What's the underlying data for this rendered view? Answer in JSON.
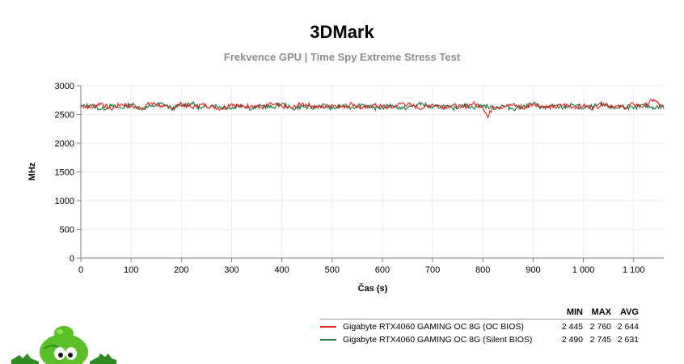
{
  "title": "3DMark",
  "subtitle": "Frekvence GPU | Time Spy Extreme Stress Test",
  "legend_headers": [
    "MIN",
    "MAX",
    "AVG"
  ],
  "colors": {
    "series1": "#e02020",
    "series2": "#1a7a3e",
    "grid": "#ececec",
    "axis": "#7f7f7f"
  },
  "legend": [
    {
      "name": "Gigabyte RTX4060 GAMING OC 8G (OC BIOS)",
      "min": "2 445",
      "max": "2 760",
      "avg": "2 644"
    },
    {
      "name": "Gigabyte RTX4060 GAMING OC 8G (Silent BIOS)",
      "min": "2 490",
      "max": "2 745",
      "avg": "2 631"
    }
  ],
  "chart_data": {
    "type": "line",
    "xlabel": "Čas (s)",
    "ylabel": "MHz",
    "xlim": [
      0,
      1160
    ],
    "ylim": [
      0,
      3000
    ],
    "xticks": [
      0,
      100,
      200,
      300,
      400,
      500,
      600,
      700,
      800,
      900,
      1000,
      1100
    ],
    "xtick_labels": [
      "0",
      "100",
      "200",
      "300",
      "400",
      "500",
      "600",
      "700",
      "800",
      "900",
      "1 000",
      "1 100"
    ],
    "yticks": [
      0,
      500,
      1000,
      1500,
      2000,
      2500,
      3000
    ],
    "ytick_labels": [
      "0",
      "500",
      "1000",
      "1500",
      "2000",
      "2500",
      "3000"
    ],
    "grid": true,
    "series": [
      {
        "name": "Gigabyte RTX4060 GAMING OC 8G (OC BIOS)",
        "x": [
          0,
          20,
          40,
          60,
          80,
          100,
          120,
          140,
          160,
          180,
          200,
          220,
          240,
          260,
          280,
          300,
          320,
          340,
          360,
          380,
          400,
          420,
          440,
          460,
          480,
          500,
          520,
          540,
          560,
          580,
          600,
          620,
          640,
          660,
          680,
          700,
          720,
          740,
          760,
          780,
          800,
          810,
          820,
          840,
          860,
          880,
          900,
          920,
          940,
          960,
          980,
          1000,
          1020,
          1040,
          1060,
          1080,
          1100,
          1120,
          1140,
          1160
        ],
        "values": [
          2660,
          2620,
          2700,
          2590,
          2680,
          2640,
          2610,
          2700,
          2650,
          2600,
          2690,
          2620,
          2670,
          2640,
          2600,
          2690,
          2630,
          2660,
          2620,
          2680,
          2640,
          2610,
          2690,
          2650,
          2620,
          2670,
          2630,
          2690,
          2600,
          2660,
          2640,
          2620,
          2700,
          2650,
          2610,
          2680,
          2630,
          2660,
          2620,
          2690,
          2640,
          2445,
          2650,
          2620,
          2680,
          2600,
          2690,
          2640,
          2620,
          2670,
          2630,
          2650,
          2610,
          2690,
          2640,
          2620,
          2680,
          2640,
          2760,
          2600
        ]
      },
      {
        "name": "Gigabyte RTX4060 GAMING OC 8G (Silent BIOS)",
        "x": [
          0,
          20,
          40,
          60,
          80,
          100,
          120,
          140,
          160,
          180,
          200,
          220,
          240,
          260,
          280,
          300,
          320,
          340,
          360,
          380,
          400,
          420,
          440,
          460,
          480,
          500,
          520,
          540,
          560,
          580,
          600,
          620,
          640,
          660,
          680,
          700,
          720,
          740,
          760,
          780,
          800,
          820,
          840,
          860,
          880,
          900,
          920,
          940,
          960,
          980,
          1000,
          1020,
          1040,
          1060,
          1080,
          1100,
          1120,
          1140,
          1160
        ],
        "values": [
          2630,
          2670,
          2590,
          2650,
          2610,
          2680,
          2600,
          2640,
          2690,
          2610,
          2650,
          2700,
          2600,
          2660,
          2630,
          2610,
          2670,
          2600,
          2650,
          2620,
          2690,
          2600,
          2640,
          2610,
          2670,
          2600,
          2650,
          2620,
          2680,
          2610,
          2620,
          2660,
          2600,
          2640,
          2690,
          2610,
          2650,
          2600,
          2670,
          2620,
          2660,
          2610,
          2650,
          2600,
          2640,
          2690,
          2610,
          2650,
          2620,
          2670,
          2600,
          2640,
          2670,
          2610,
          2650,
          2600,
          2660,
          2620,
          2640
        ]
      }
    ]
  }
}
